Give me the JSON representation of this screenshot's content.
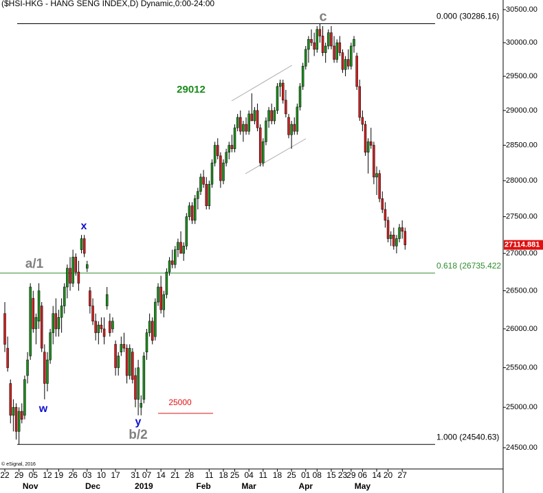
{
  "chart_data": {
    "type": "candlestick",
    "title": "($HSI-HKG - HANG SENG INDEX,D) Dynamic,0:00-24:00",
    "footer": "© eSignal, 2016",
    "log_scale": true,
    "up_color": "#1e8c1e",
    "down_color": "#cc2020",
    "ylim": [
      24241,
      30647
    ],
    "yticks": [
      {
        "value": 24500,
        "label": "24500.00"
      },
      {
        "value": 25000,
        "label": "25000.00"
      },
      {
        "value": 25500,
        "label": "25500.00"
      },
      {
        "value": 26000,
        "label": "26000.00"
      },
      {
        "value": 26500,
        "label": "26500.00"
      },
      {
        "value": 27000,
        "label": "27000.00"
      },
      {
        "value": 27500,
        "label": "27500.00"
      },
      {
        "value": 28000,
        "label": "28000.00"
      },
      {
        "value": 28500,
        "label": "28500.00"
      },
      {
        "value": 29000,
        "label": "29000.00"
      },
      {
        "value": 29500,
        "label": "29500.00"
      },
      {
        "value": 30000,
        "label": "30000.00"
      },
      {
        "value": 30500,
        "label": "30500.00"
      }
    ],
    "levels": [
      {
        "label": "0.000 (30286.16)",
        "value": 30286.16,
        "color": "#000000"
      },
      {
        "label": "0.618 (26735.422",
        "value": 26735.422,
        "color": "#2e8b2e"
      },
      {
        "label": "1.000 (24540.63)",
        "value": 24540.63,
        "color": "#000000"
      }
    ],
    "annotations": [
      {
        "text": "c",
        "color": "#808080"
      },
      {
        "text": "29012",
        "color": "#1a8a1a"
      },
      {
        "text": "x",
        "color": "#1010d0"
      },
      {
        "text": "a/1",
        "color": "#808080"
      },
      {
        "text": "w",
        "color": "#1010d0"
      },
      {
        "text": "y",
        "color": "#1010d0"
      },
      {
        "text": "b/2",
        "color": "#808080"
      },
      {
        "text": "25000",
        "color": "#e01010"
      }
    ],
    "categories": [
      "22",
      null,
      null,
      null,
      null,
      "29",
      null,
      null,
      null,
      null,
      "05",
      null,
      null,
      null,
      null,
      "12",
      null,
      null,
      null,
      "19",
      null,
      null,
      null,
      null,
      "26",
      null,
      null,
      null,
      null,
      "03",
      null,
      null,
      null,
      null,
      "10",
      null,
      null,
      null,
      null,
      "17",
      null,
      null,
      null,
      null,
      null,
      null,
      "31",
      null,
      null,
      null,
      "07",
      null,
      null,
      null,
      null,
      "14",
      null,
      null,
      null,
      null,
      "21",
      null,
      null,
      null,
      null,
      "28",
      null,
      null,
      null,
      null,
      null,
      null,
      "11",
      null,
      null,
      null,
      null,
      "18",
      null,
      null,
      null,
      "25",
      null,
      null,
      null,
      null,
      "04",
      null,
      null,
      null,
      null,
      "11",
      null,
      null,
      null,
      null,
      "18",
      null,
      null,
      null,
      null,
      "25",
      null,
      null,
      null,
      null,
      "01",
      null,
      null,
      null,
      "08",
      null,
      null,
      null,
      null,
      "15",
      null,
      null,
      null,
      "23",
      null,
      null,
      "29",
      null,
      null,
      null,
      "06",
      null,
      null,
      null,
      null,
      "14",
      null,
      null,
      null,
      "20",
      null,
      null,
      null,
      null,
      "27",
      null
    ],
    "months": [
      null,
      null,
      null,
      null,
      null,
      null,
      null,
      null,
      null,
      "Nov",
      null,
      null,
      null,
      null,
      null,
      null,
      null,
      null,
      null,
      null,
      null,
      null,
      null,
      null,
      null,
      null,
      null,
      null,
      null,
      null,
      null,
      "Dec",
      null,
      null,
      null,
      null,
      null,
      null,
      null,
      null,
      null,
      null,
      null,
      null,
      null,
      null,
      null,
      null,
      null,
      "2019",
      null,
      null,
      null,
      null,
      null,
      null,
      null,
      null,
      null,
      null,
      null,
      null,
      null,
      null,
      null,
      null,
      null,
      null,
      null,
      null,
      "Feb",
      null,
      null,
      null,
      null,
      null,
      null,
      null,
      null,
      null,
      null,
      null,
      null,
      null,
      null,
      null,
      "Mar",
      null,
      null,
      null,
      null,
      null,
      null,
      null,
      null,
      null,
      null,
      null,
      null,
      null,
      null,
      null,
      null,
      null,
      null,
      null,
      "Apr",
      null,
      null,
      null,
      null,
      null,
      null,
      null,
      null,
      null,
      null,
      null,
      null,
      null,
      null,
      null,
      null,
      null,
      null,
      null,
      "May",
      null,
      null,
      null,
      null,
      null,
      null,
      null,
      null,
      null,
      null,
      null,
      null,
      null,
      null,
      null
    ],
    "candles": [
      [
        26200,
        26350,
        25700,
        25800
      ],
      [
        25750,
        25900,
        25450,
        25500
      ],
      [
        25300,
        25350,
        24800,
        24900
      ],
      [
        24900,
        25100,
        24700,
        25000
      ],
      [
        25000,
        25050,
        24600,
        24700
      ],
      [
        24700,
        25000,
        24540,
        24950
      ],
      [
        24950,
        25050,
        24800,
        24850
      ],
      [
        24900,
        25400,
        24850,
        25350
      ],
      [
        25400,
        25700,
        25300,
        25600
      ],
      [
        25650,
        26600,
        25600,
        26550
      ],
      [
        26400,
        26500,
        25950,
        26000
      ],
      [
        26000,
        26200,
        25800,
        26150
      ],
      [
        26100,
        26600,
        26000,
        26500
      ],
      [
        26300,
        26350,
        25700,
        25750
      ],
      [
        25700,
        25800,
        25100,
        25300
      ],
      [
        25300,
        25700,
        25200,
        25600
      ],
      [
        25600,
        26000,
        25550,
        25950
      ],
      [
        25950,
        26300,
        25800,
        26200
      ],
      [
        26200,
        26400,
        25900,
        26000
      ],
      [
        26000,
        26250,
        25900,
        26150
      ],
      [
        26150,
        26400,
        25950,
        26300
      ],
      [
        26300,
        26600,
        26200,
        26550
      ],
      [
        26550,
        26850,
        26400,
        26800
      ],
      [
        26800,
        26950,
        26500,
        26600
      ],
      [
        26600,
        27050,
        26550,
        26950
      ],
      [
        26950,
        27000,
        26700,
        26750
      ],
      [
        26750,
        26900,
        26500,
        26600
      ],
      [
        27050,
        27250,
        27000,
        27200
      ],
      [
        27200,
        27250,
        26950,
        27000
      ],
      [
        26800,
        26900,
        26750,
        26850
      ],
      [
        26500,
        26550,
        26200,
        26300
      ],
      [
        26300,
        26400,
        26050,
        26100
      ],
      [
        26100,
        26200,
        25850,
        25950
      ],
      [
        25950,
        26100,
        25800,
        26050
      ],
      [
        26050,
        26150,
        25950,
        26000
      ],
      [
        26000,
        26150,
        25800,
        25900
      ],
      [
        26300,
        26550,
        26250,
        26450
      ],
      [
        26100,
        26200,
        25900,
        25950
      ],
      [
        26000,
        26150,
        25950,
        26100
      ],
      [
        25800,
        25850,
        25400,
        25500
      ],
      [
        25500,
        25700,
        25400,
        25650
      ],
      [
        25700,
        25900,
        25650,
        25800
      ],
      [
        25800,
        25950,
        25700,
        25750
      ],
      [
        25750,
        25800,
        25300,
        25400
      ],
      [
        25400,
        25800,
        25350,
        25750
      ],
      [
        25700,
        25750,
        25300,
        25350
      ],
      [
        25400,
        25500,
        25000,
        25100
      ],
      [
        25100,
        25600,
        24900,
        25500
      ],
      [
        25000,
        25150,
        24900,
        25050
      ],
      [
        25100,
        25700,
        25050,
        25650
      ],
      [
        25700,
        26000,
        25600,
        25950
      ],
      [
        25950,
        26200,
        25900,
        26100
      ],
      [
        26100,
        26150,
        25800,
        25850
      ],
      [
        25900,
        26400,
        25850,
        26350
      ],
      [
        26350,
        26600,
        26300,
        26550
      ],
      [
        26550,
        26700,
        26200,
        26250
      ],
      [
        26250,
        26500,
        26150,
        26450
      ],
      [
        26450,
        26800,
        26400,
        26750
      ],
      [
        26750,
        26950,
        26700,
        26900
      ],
      [
        26900,
        27050,
        26800,
        26850
      ],
      [
        26850,
        27100,
        26800,
        27050
      ],
      [
        27050,
        27200,
        26950,
        27150
      ],
      [
        27150,
        27300,
        27000,
        27000
      ],
      [
        27000,
        27150,
        26900,
        27100
      ],
      [
        27100,
        27550,
        27050,
        27500
      ],
      [
        27500,
        27700,
        27450,
        27650
      ],
      [
        27650,
        27700,
        27400,
        27450
      ],
      [
        27450,
        27800,
        27400,
        27750
      ],
      [
        27750,
        27900,
        27600,
        27850
      ],
      [
        27850,
        28100,
        27800,
        28050
      ],
      [
        28050,
        28150,
        27900,
        27950
      ],
      [
        27950,
        28050,
        27600,
        27650
      ],
      [
        27650,
        28000,
        27600,
        27950
      ],
      [
        27950,
        28300,
        27900,
        28250
      ],
      [
        28250,
        28550,
        28200,
        28500
      ],
      [
        28500,
        28600,
        28300,
        28350
      ],
      [
        28350,
        28400,
        27900,
        28000
      ],
      [
        28000,
        28300,
        27950,
        28250
      ],
      [
        28250,
        28450,
        28200,
        28400
      ],
      [
        28400,
        28550,
        28300,
        28500
      ],
      [
        28500,
        28650,
        28400,
        28450
      ],
      [
        28450,
        28800,
        28400,
        28750
      ],
      [
        28750,
        28950,
        28700,
        28900
      ],
      [
        28900,
        29000,
        28650,
        28700
      ],
      [
        28700,
        28850,
        28550,
        28800
      ],
      [
        28800,
        28900,
        28650,
        28700
      ],
      [
        28700,
        29000,
        28650,
        28950
      ],
      [
        28950,
        29250,
        28900,
        28850
      ],
      [
        28850,
        29050,
        28800,
        29000
      ],
      [
        29000,
        29100,
        28700,
        28750
      ],
      [
        28750,
        28800,
        28200,
        28250
      ],
      [
        28250,
        28600,
        28200,
        28550
      ],
      [
        28550,
        28900,
        28500,
        28850
      ],
      [
        28850,
        29050,
        28750,
        29000
      ],
      [
        29000,
        29100,
        28800,
        28850
      ],
      [
        28850,
        29050,
        28800,
        29000
      ],
      [
        29000,
        29400,
        28950,
        29350
      ],
      [
        29350,
        29450,
        29200,
        29400
      ],
      [
        29400,
        29450,
        29100,
        29150
      ],
      [
        29150,
        29300,
        28900,
        28950
      ],
      [
        28900,
        28950,
        28600,
        28650
      ],
      [
        28650,
        28850,
        28450,
        28800
      ],
      [
        28800,
        28900,
        28650,
        28700
      ],
      [
        28700,
        29100,
        28650,
        29050
      ],
      [
        29050,
        29400,
        29000,
        29350
      ],
      [
        29350,
        29700,
        29300,
        29650
      ],
      [
        29650,
        29950,
        29600,
        29900
      ],
      [
        29900,
        30100,
        29700,
        30050
      ],
      [
        30050,
        30200,
        29950,
        30000
      ],
      [
        30000,
        30150,
        29800,
        29900
      ],
      [
        29900,
        30250,
        29850,
        30200
      ],
      [
        30200,
        30286,
        30000,
        30100
      ],
      [
        30100,
        30250,
        29800,
        29850
      ],
      [
        29850,
        30000,
        29700,
        29950
      ],
      [
        29950,
        30200,
        29900,
        30150
      ],
      [
        30150,
        30250,
        29900,
        29950
      ],
      [
        29950,
        30100,
        29700,
        29750
      ],
      [
        29750,
        30050,
        29700,
        30000
      ],
      [
        30000,
        30100,
        29800,
        29850
      ],
      [
        29850,
        29900,
        29550,
        29600
      ],
      [
        29600,
        29800,
        29500,
        29750
      ],
      [
        29750,
        29900,
        29600,
        29650
      ],
      [
        29650,
        30000,
        29600,
        29950
      ],
      [
        29950,
        30100,
        29850,
        30050
      ],
      [
        29800,
        29850,
        29300,
        29350
      ],
      [
        29350,
        29450,
        28850,
        28900
      ],
      [
        28900,
        29000,
        28700,
        28800
      ],
      [
        28800,
        28850,
        28350,
        28400
      ],
      [
        28400,
        28600,
        28100,
        28550
      ],
      [
        28550,
        28750,
        28450,
        28500
      ],
      [
        28500,
        28550,
        27950,
        28050
      ],
      [
        28050,
        28200,
        27800,
        28100
      ],
      [
        28100,
        28150,
        27700,
        27750
      ],
      [
        27750,
        27850,
        27550,
        27600
      ],
      [
        27600,
        27700,
        27350,
        27450
      ],
      [
        27450,
        27500,
        27150,
        27200
      ],
      [
        27200,
        27300,
        27100,
        27250
      ],
      [
        27250,
        27350,
        27050,
        27100
      ],
      [
        27100,
        27250,
        27000,
        27200
      ],
      [
        27200,
        27400,
        27150,
        27350
      ],
      [
        27350,
        27450,
        27200,
        27300
      ],
      [
        27300,
        27350,
        27050,
        27114.881
      ]
    ]
  }
}
